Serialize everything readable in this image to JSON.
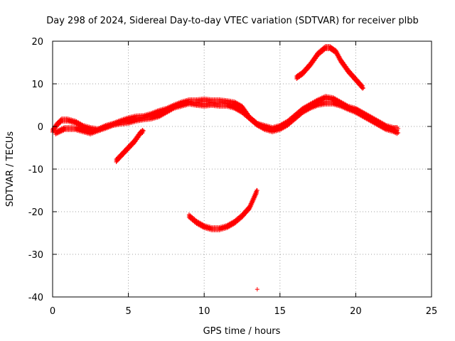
{
  "chart_data": {
    "type": "scatter",
    "title": "Day 298 of 2024, Sidereal Day-to-day VTEC variation (SDTVAR) for receiver plbb",
    "xlabel": "GPS time / hours",
    "ylabel": "SDTVAR / TECUs",
    "xlim": [
      0,
      25
    ],
    "ylim": [
      -40,
      20
    ],
    "xticks": [
      0,
      5,
      10,
      15,
      20,
      25
    ],
    "yticks": [
      -40,
      -30,
      -20,
      -10,
      0,
      10,
      20
    ],
    "grid": true,
    "marker": "+",
    "series": [
      {
        "name": "main-band",
        "color": "#ff0000",
        "points": [
          [
            0.0,
            -1.0
          ],
          [
            0.3,
            0.5
          ],
          [
            0.6,
            1.5
          ],
          [
            1.0,
            1.5
          ],
          [
            1.5,
            1.0
          ],
          [
            2.0,
            0.0
          ],
          [
            2.5,
            -0.5
          ],
          [
            3.0,
            -0.8
          ],
          [
            3.5,
            -0.2
          ],
          [
            4.0,
            0.5
          ],
          [
            4.5,
            1.2
          ],
          [
            5.0,
            1.8
          ],
          [
            5.5,
            2.2
          ],
          [
            6.0,
            2.3
          ],
          [
            6.5,
            2.8
          ],
          [
            7.0,
            3.5
          ],
          [
            7.5,
            4.0
          ],
          [
            8.0,
            4.8
          ],
          [
            8.5,
            5.5
          ],
          [
            9.0,
            6.0
          ],
          [
            9.5,
            6.0
          ],
          [
            10.0,
            6.2
          ],
          [
            10.5,
            6.0
          ],
          [
            11.0,
            6.0
          ],
          [
            11.5,
            5.8
          ],
          [
            12.0,
            5.5
          ],
          [
            12.5,
            4.5
          ],
          [
            13.0,
            2.0
          ],
          [
            13.5,
            0.5
          ],
          [
            14.0,
            0.0
          ],
          [
            14.5,
            -0.5
          ],
          [
            15.0,
            0.0
          ],
          [
            15.5,
            1.0
          ],
          [
            16.0,
            2.5
          ],
          [
            16.5,
            4.0
          ],
          [
            17.0,
            5.0
          ],
          [
            17.5,
            6.0
          ],
          [
            18.0,
            6.8
          ],
          [
            18.5,
            6.5
          ],
          [
            19.0,
            5.5
          ],
          [
            19.5,
            4.5
          ],
          [
            20.0,
            4.0
          ],
          [
            20.5,
            3.0
          ],
          [
            21.0,
            2.0
          ],
          [
            21.5,
            1.0
          ],
          [
            22.0,
            0.0
          ],
          [
            22.5,
            -0.5
          ],
          [
            22.8,
            -0.5
          ]
        ]
      },
      {
        "name": "secondary-band",
        "color": "#ff0000",
        "points": [
          [
            0.2,
            -1.5
          ],
          [
            0.8,
            -0.5
          ],
          [
            1.5,
            -0.5
          ],
          [
            2.0,
            -1.0
          ],
          [
            2.5,
            -1.5
          ],
          [
            3.0,
            -0.8
          ],
          [
            3.5,
            0.0
          ],
          [
            4.0,
            0.5
          ],
          [
            4.5,
            0.8
          ],
          [
            5.0,
            1.0
          ],
          [
            5.5,
            1.5
          ],
          [
            6.0,
            1.8
          ],
          [
            6.5,
            2.0
          ],
          [
            7.0,
            2.5
          ],
          [
            7.5,
            3.5
          ],
          [
            8.0,
            4.5
          ],
          [
            8.5,
            5.0
          ],
          [
            9.0,
            5.5
          ],
          [
            9.5,
            5.2
          ],
          [
            10.0,
            5.0
          ],
          [
            10.5,
            5.2
          ],
          [
            11.0,
            5.0
          ],
          [
            11.5,
            5.0
          ],
          [
            12.0,
            4.5
          ],
          [
            12.5,
            3.5
          ],
          [
            13.0,
            2.0
          ],
          [
            13.5,
            0.5
          ],
          [
            14.0,
            -0.5
          ],
          [
            14.5,
            -1.0
          ],
          [
            15.0,
            -0.5
          ],
          [
            15.5,
            0.5
          ],
          [
            16.0,
            2.0
          ],
          [
            16.5,
            3.5
          ],
          [
            17.0,
            4.5
          ],
          [
            17.5,
            5.2
          ],
          [
            18.0,
            5.5
          ],
          [
            18.5,
            5.5
          ],
          [
            19.0,
            5.0
          ],
          [
            19.5,
            4.2
          ],
          [
            20.0,
            3.5
          ],
          [
            20.5,
            2.5
          ],
          [
            21.0,
            1.5
          ],
          [
            21.5,
            0.5
          ],
          [
            22.0,
            -0.5
          ],
          [
            22.5,
            -1.0
          ],
          [
            22.8,
            -1.5
          ]
        ]
      },
      {
        "name": "upper-arc",
        "color": "#ff0000",
        "points": [
          [
            16.1,
            11.5
          ],
          [
            16.5,
            12.5
          ],
          [
            17.0,
            14.5
          ],
          [
            17.5,
            17.0
          ],
          [
            18.0,
            18.5
          ],
          [
            18.3,
            18.5
          ],
          [
            18.7,
            17.5
          ],
          [
            19.0,
            15.5
          ],
          [
            19.5,
            13.0
          ],
          [
            20.0,
            11.0
          ],
          [
            20.5,
            9.0
          ]
        ]
      },
      {
        "name": "lower-arc",
        "color": "#ff0000",
        "points": [
          [
            9.0,
            -21.0
          ],
          [
            9.5,
            -22.5
          ],
          [
            10.0,
            -23.5
          ],
          [
            10.5,
            -24.0
          ],
          [
            11.0,
            -24.0
          ],
          [
            11.5,
            -23.5
          ],
          [
            12.0,
            -22.5
          ],
          [
            12.5,
            -21.0
          ],
          [
            13.0,
            -19.0
          ],
          [
            13.5,
            -15.0
          ]
        ]
      },
      {
        "name": "diagonal-segment",
        "color": "#ff0000",
        "points": [
          [
            4.2,
            -8.0
          ],
          [
            4.6,
            -6.5
          ],
          [
            5.0,
            -5.0
          ],
          [
            5.4,
            -3.5
          ],
          [
            5.8,
            -1.5
          ],
          [
            6.0,
            -1.0
          ]
        ]
      },
      {
        "name": "outlier",
        "color": "#ff0000",
        "points": [
          [
            13.5,
            -38.2
          ]
        ]
      }
    ]
  }
}
